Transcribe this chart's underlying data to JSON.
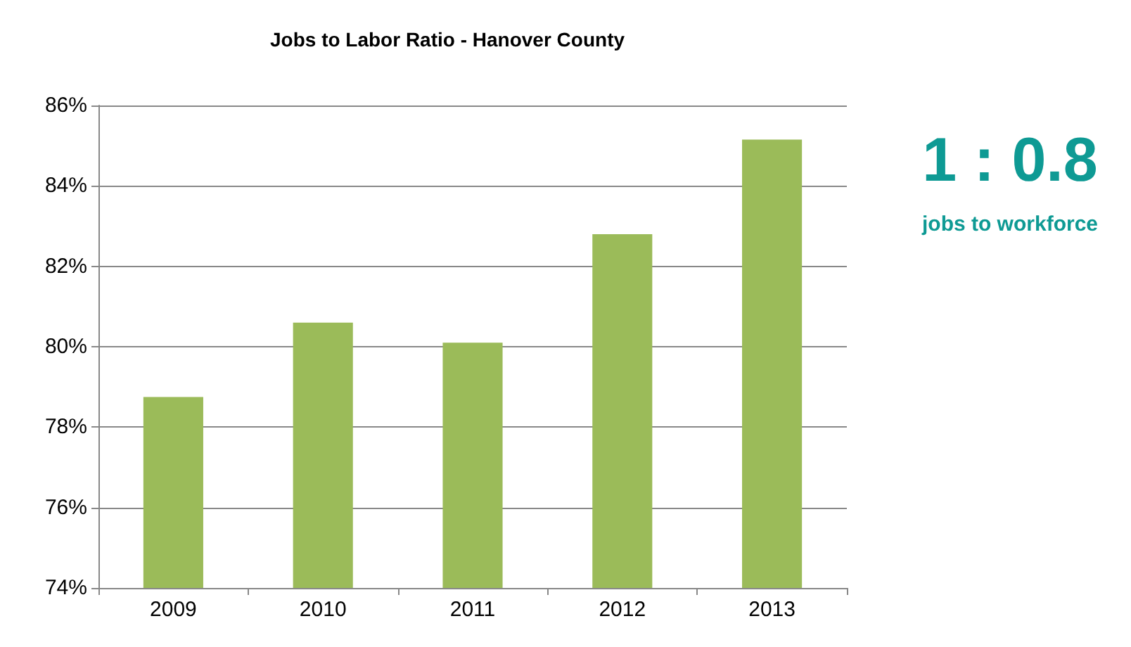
{
  "chart_data": {
    "type": "bar",
    "title": "Jobs to Labor Ratio - Hanover County",
    "categories": [
      "2009",
      "2010",
      "2011",
      "2012",
      "2013"
    ],
    "values": [
      78.75,
      80.6,
      80.1,
      82.8,
      85.15
    ],
    "color": "#9bbb59",
    "ylim": [
      74,
      86
    ],
    "yticks": [
      {
        "value": 74,
        "label": "74%"
      },
      {
        "value": 76,
        "label": "76%"
      },
      {
        "value": 78,
        "label": "78%"
      },
      {
        "value": 80,
        "label": "80%"
      },
      {
        "value": 82,
        "label": "82%"
      },
      {
        "value": 84,
        "label": "84%"
      },
      {
        "value": 86,
        "label": "86%"
      }
    ],
    "grid": "y",
    "annotations": [
      "1 : 0.8",
      "jobs to workforce"
    ]
  }
}
